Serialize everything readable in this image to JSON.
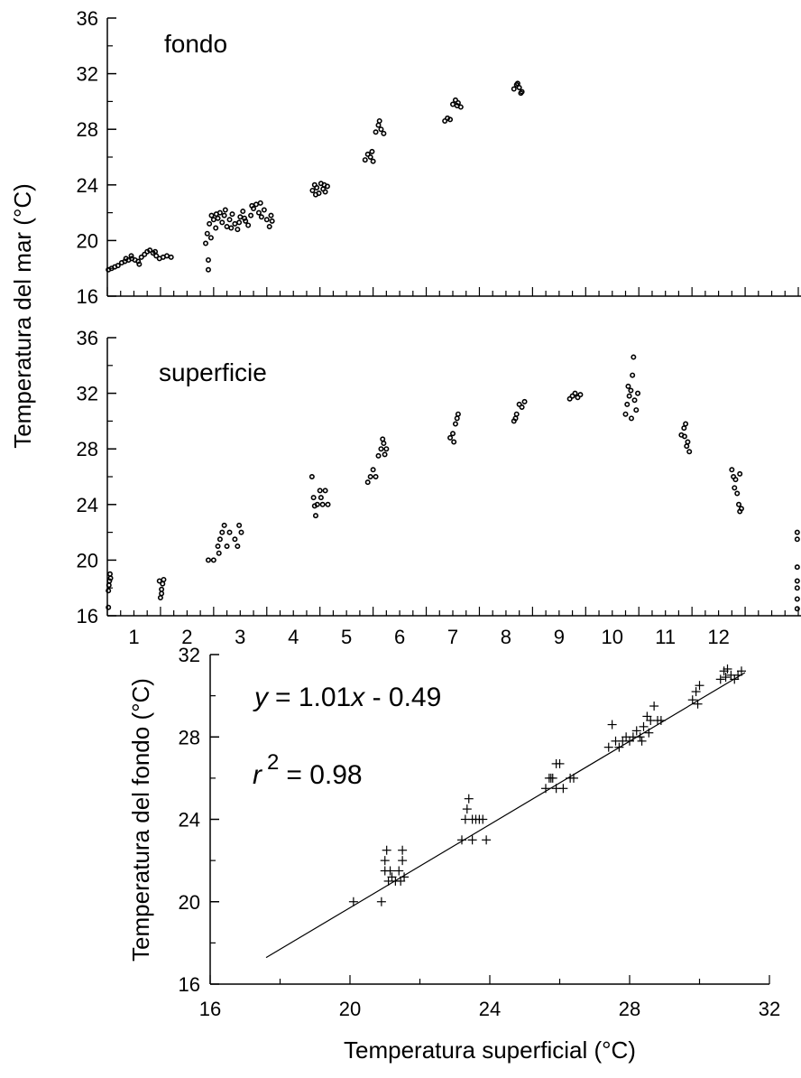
{
  "chart_data": [
    {
      "type": "scatter",
      "panel_label": "fondo",
      "ylabel": "Temperatura del mar (°C)",
      "ylim": [
        16,
        36
      ],
      "yticks": [
        "16",
        "20",
        "24",
        "28",
        "32",
        "36"
      ],
      "xlim": [
        0,
        13
      ],
      "series": [
        {
          "marker": "open-circle",
          "points": [
            [
              0.02,
              17.9
            ],
            [
              0.08,
              18.0
            ],
            [
              0.14,
              18.1
            ],
            [
              0.2,
              18.2
            ],
            [
              0.27,
              18.4
            ],
            [
              0.33,
              18.5
            ],
            [
              0.4,
              18.6
            ],
            [
              0.46,
              18.7
            ],
            [
              0.52,
              18.6
            ],
            [
              0.58,
              18.5
            ],
            [
              0.64,
              18.8
            ],
            [
              0.7,
              19.0
            ],
            [
              0.75,
              19.2
            ],
            [
              0.8,
              19.3
            ],
            [
              0.86,
              19.1
            ],
            [
              0.92,
              18.9
            ],
            [
              0.98,
              18.7
            ],
            [
              1.05,
              18.8
            ],
            [
              1.12,
              18.9
            ],
            [
              1.2,
              18.8
            ],
            [
              0.6,
              18.3
            ],
            [
              0.35,
              18.7
            ],
            [
              0.9,
              19.2
            ],
            [
              0.45,
              18.9
            ],
            [
              1.85,
              19.8
            ],
            [
              1.88,
              20.5
            ],
            [
              1.92,
              21.2
            ],
            [
              1.96,
              21.8
            ],
            [
              2.0,
              21.5
            ],
            [
              2.04,
              20.9
            ],
            [
              2.08,
              21.6
            ],
            [
              2.12,
              22.0
            ],
            [
              2.16,
              21.3
            ],
            [
              2.2,
              21.8
            ],
            [
              2.25,
              21.0
            ],
            [
              2.3,
              21.5
            ],
            [
              2.35,
              21.9
            ],
            [
              2.4,
              21.2
            ],
            [
              2.45,
              20.8
            ],
            [
              2.5,
              21.7
            ],
            [
              2.55,
              22.1
            ],
            [
              2.6,
              21.4
            ],
            [
              2.65,
              21.1
            ],
            [
              2.7,
              21.8
            ],
            [
              2.75,
              22.3
            ],
            [
              2.8,
              22.6
            ],
            [
              2.85,
              22.0
            ],
            [
              2.9,
              21.7
            ],
            [
              2.95,
              22.2
            ],
            [
              3.0,
              21.5
            ],
            [
              3.05,
              21.0
            ],
            [
              3.1,
              21.4
            ],
            [
              1.9,
              17.9
            ],
            [
              1.9,
              18.6
            ],
            [
              1.95,
              20.2
            ],
            [
              2.05,
              21.9
            ],
            [
              2.22,
              22.2
            ],
            [
              2.33,
              20.9
            ],
            [
              2.48,
              21.3
            ],
            [
              2.58,
              21.6
            ],
            [
              2.72,
              22.5
            ],
            [
              2.88,
              22.7
            ],
            [
              3.08,
              21.8
            ],
            [
              3.86,
              23.6
            ],
            [
              3.9,
              24.0
            ],
            [
              3.94,
              23.8
            ],
            [
              3.98,
              23.4
            ],
            [
              4.02,
              24.1
            ],
            [
              4.06,
              23.7
            ],
            [
              4.1,
              23.5
            ],
            [
              4.14,
              23.9
            ],
            [
              3.92,
              23.3
            ],
            [
              4.08,
              24.0
            ],
            [
              4.85,
              25.8
            ],
            [
              4.9,
              26.2
            ],
            [
              4.95,
              26.0
            ],
            [
              5.0,
              25.7
            ],
            [
              5.05,
              27.8
            ],
            [
              5.1,
              28.3
            ],
            [
              5.15,
              28.0
            ],
            [
              5.2,
              27.7
            ],
            [
              5.12,
              28.6
            ],
            [
              4.98,
              26.4
            ],
            [
              6.35,
              28.6
            ],
            [
              6.4,
              28.8
            ],
            [
              6.45,
              28.7
            ],
            [
              6.5,
              29.8
            ],
            [
              6.55,
              30.1
            ],
            [
              6.6,
              29.9
            ],
            [
              6.65,
              29.6
            ],
            [
              6.58,
              29.7
            ],
            [
              7.65,
              30.9
            ],
            [
              7.7,
              31.2
            ],
            [
              7.75,
              31.0
            ],
            [
              7.8,
              30.7
            ],
            [
              7.72,
              31.3
            ],
            [
              7.78,
              30.6
            ]
          ]
        }
      ]
    },
    {
      "type": "scatter",
      "panel_label": "superficie",
      "ylim": [
        16,
        36
      ],
      "yticks": [
        "16",
        "20",
        "24",
        "28",
        "32",
        "36"
      ],
      "xlim": [
        0,
        13
      ],
      "xticks": [
        "1",
        "2",
        "3",
        "4",
        "5",
        "6",
        "7",
        "8",
        "9",
        "10",
        "11",
        "12"
      ],
      "series": [
        {
          "marker": "open-circle",
          "points": [
            [
              0.02,
              16.6
            ],
            [
              0.02,
              17.8
            ],
            [
              0.04,
              18.5
            ],
            [
              0.05,
              19.0
            ],
            [
              0.06,
              18.7
            ],
            [
              0.03,
              18.2
            ],
            [
              1.0,
              17.3
            ],
            [
              1.02,
              17.9
            ],
            [
              1.04,
              18.3
            ],
            [
              1.06,
              18.6
            ],
            [
              0.98,
              18.5
            ],
            [
              1.02,
              17.6
            ],
            [
              1.9,
              20.0
            ],
            [
              2.0,
              20.0
            ],
            [
              2.08,
              21.0
            ],
            [
              2.12,
              21.5
            ],
            [
              2.16,
              22.0
            ],
            [
              2.2,
              22.5
            ],
            [
              2.25,
              21.0
            ],
            [
              2.3,
              22.0
            ],
            [
              2.4,
              21.5
            ],
            [
              2.45,
              21.0
            ],
            [
              2.48,
              22.5
            ],
            [
              2.52,
              22.0
            ],
            [
              2.1,
              20.5
            ],
            [
              3.85,
              26.0
            ],
            [
              3.88,
              24.5
            ],
            [
              3.9,
              23.9
            ],
            [
              3.95,
              24.0
            ],
            [
              4.0,
              25.0
            ],
            [
              4.05,
              24.0
            ],
            [
              4.1,
              25.0
            ],
            [
              4.15,
              24.0
            ],
            [
              3.92,
              23.2
            ],
            [
              4.02,
              24.5
            ],
            [
              4.9,
              25.6
            ],
            [
              4.95,
              26.0
            ],
            [
              5.0,
              26.5
            ],
            [
              5.05,
              26.0
            ],
            [
              5.1,
              27.5
            ],
            [
              5.15,
              28.0
            ],
            [
              5.2,
              28.4
            ],
            [
              5.25,
              28.0
            ],
            [
              5.18,
              28.7
            ],
            [
              5.22,
              27.6
            ],
            [
              6.45,
              28.8
            ],
            [
              6.5,
              29.1
            ],
            [
              6.52,
              28.5
            ],
            [
              6.55,
              29.8
            ],
            [
              6.6,
              30.5
            ],
            [
              6.58,
              30.2
            ],
            [
              7.65,
              30.0
            ],
            [
              7.7,
              30.5
            ],
            [
              7.75,
              31.2
            ],
            [
              7.8,
              31.0
            ],
            [
              7.85,
              31.4
            ],
            [
              7.68,
              30.2
            ],
            [
              8.7,
              31.6
            ],
            [
              8.75,
              31.8
            ],
            [
              8.8,
              32.0
            ],
            [
              8.85,
              31.7
            ],
            [
              8.9,
              31.9
            ],
            [
              9.75,
              30.5
            ],
            [
              9.78,
              31.2
            ],
            [
              9.82,
              31.8
            ],
            [
              9.85,
              32.2
            ],
            [
              9.88,
              33.3
            ],
            [
              9.9,
              34.6
            ],
            [
              9.92,
              31.5
            ],
            [
              9.95,
              30.8
            ],
            [
              9.98,
              32.0
            ],
            [
              9.86,
              30.2
            ],
            [
              9.8,
              32.5
            ],
            [
              10.8,
              29.0
            ],
            [
              10.85,
              29.5
            ],
            [
              10.88,
              29.8
            ],
            [
              10.9,
              28.2
            ],
            [
              10.95,
              27.8
            ],
            [
              10.92,
              28.5
            ],
            [
              10.86,
              28.9
            ],
            [
              11.75,
              26.5
            ],
            [
              11.78,
              26.0
            ],
            [
              11.82,
              25.8
            ],
            [
              11.85,
              24.8
            ],
            [
              11.88,
              24.0
            ],
            [
              11.9,
              23.5
            ],
            [
              11.93,
              23.7
            ],
            [
              11.8,
              25.2
            ],
            [
              11.9,
              26.2
            ],
            [
              12.98,
              16.5
            ],
            [
              12.98,
              17.2
            ],
            [
              12.98,
              18.0
            ],
            [
              12.98,
              18.5
            ],
            [
              12.98,
              19.5
            ],
            [
              12.98,
              21.5
            ],
            [
              12.98,
              22.0
            ]
          ]
        }
      ]
    },
    {
      "type": "scatter",
      "xlabel": "Temperatura superficial (°C)",
      "ylabel": "Temperatura del fondo (°C)",
      "xlim": [
        16,
        32
      ],
      "ylim": [
        16,
        32
      ],
      "xticks": [
        "16",
        "20",
        "24",
        "28",
        "32"
      ],
      "yticks": [
        "16",
        "20",
        "24",
        "28",
        "32"
      ],
      "equation": "= 1.01",
      "equation_var_y": "y",
      "equation_var_x": "x",
      "equation_tail": " - 0.49",
      "r2_label": "r",
      "r2_exp": "2",
      "r2_value": "= 0.98",
      "fit_line": {
        "slope": 1.01,
        "intercept": -0.49,
        "x_range": [
          17.6,
          31.3
        ]
      },
      "series": [
        {
          "marker": "plus",
          "points": [
            [
              20.1,
              20.0
            ],
            [
              20.9,
              20.0
            ],
            [
              21.0,
              21.5
            ],
            [
              21.0,
              22.0
            ],
            [
              21.05,
              22.5
            ],
            [
              21.1,
              21.0
            ],
            [
              21.15,
              21.5
            ],
            [
              21.2,
              21.2
            ],
            [
              21.3,
              21.0
            ],
            [
              21.4,
              21.5
            ],
            [
              21.5,
              22.0
            ],
            [
              21.5,
              22.5
            ],
            [
              21.45,
              21.0
            ],
            [
              21.55,
              21.2
            ],
            [
              23.2,
              23.0
            ],
            [
              23.3,
              24.0
            ],
            [
              23.35,
              24.5
            ],
            [
              23.4,
              25.0
            ],
            [
              23.5,
              23.0
            ],
            [
              23.5,
              24.0
            ],
            [
              23.6,
              24.0
            ],
            [
              23.7,
              24.0
            ],
            [
              23.8,
              24.0
            ],
            [
              23.9,
              23.0
            ],
            [
              25.6,
              25.5
            ],
            [
              25.7,
              26.0
            ],
            [
              25.8,
              26.0
            ],
            [
              25.9,
              25.5
            ],
            [
              25.9,
              26.7
            ],
            [
              26.0,
              26.7
            ],
            [
              26.1,
              25.5
            ],
            [
              26.3,
              26.0
            ],
            [
              26.4,
              26.0
            ],
            [
              25.75,
              26.0
            ],
            [
              27.4,
              27.5
            ],
            [
              27.5,
              28.6
            ],
            [
              27.6,
              27.8
            ],
            [
              27.7,
              27.5
            ],
            [
              27.8,
              27.8
            ],
            [
              27.9,
              28.0
            ],
            [
              28.0,
              27.8
            ],
            [
              28.1,
              28.0
            ],
            [
              28.2,
              28.3
            ],
            [
              28.3,
              28.0
            ],
            [
              28.4,
              28.5
            ],
            [
              28.5,
              29.0
            ],
            [
              28.6,
              28.8
            ],
            [
              28.7,
              29.5
            ],
            [
              28.8,
              28.8
            ],
            [
              28.9,
              28.8
            ],
            [
              28.35,
              27.8
            ],
            [
              28.55,
              28.2
            ],
            [
              29.8,
              29.8
            ],
            [
              29.9,
              30.2
            ],
            [
              30.0,
              30.5
            ],
            [
              29.95,
              29.6
            ],
            [
              30.6,
              30.8
            ],
            [
              30.7,
              31.2
            ],
            [
              30.8,
              31.3
            ],
            [
              30.9,
              31.0
            ],
            [
              31.0,
              30.8
            ],
            [
              31.1,
              31.0
            ],
            [
              31.2,
              31.2
            ],
            [
              30.75,
              30.9
            ]
          ]
        }
      ]
    }
  ]
}
